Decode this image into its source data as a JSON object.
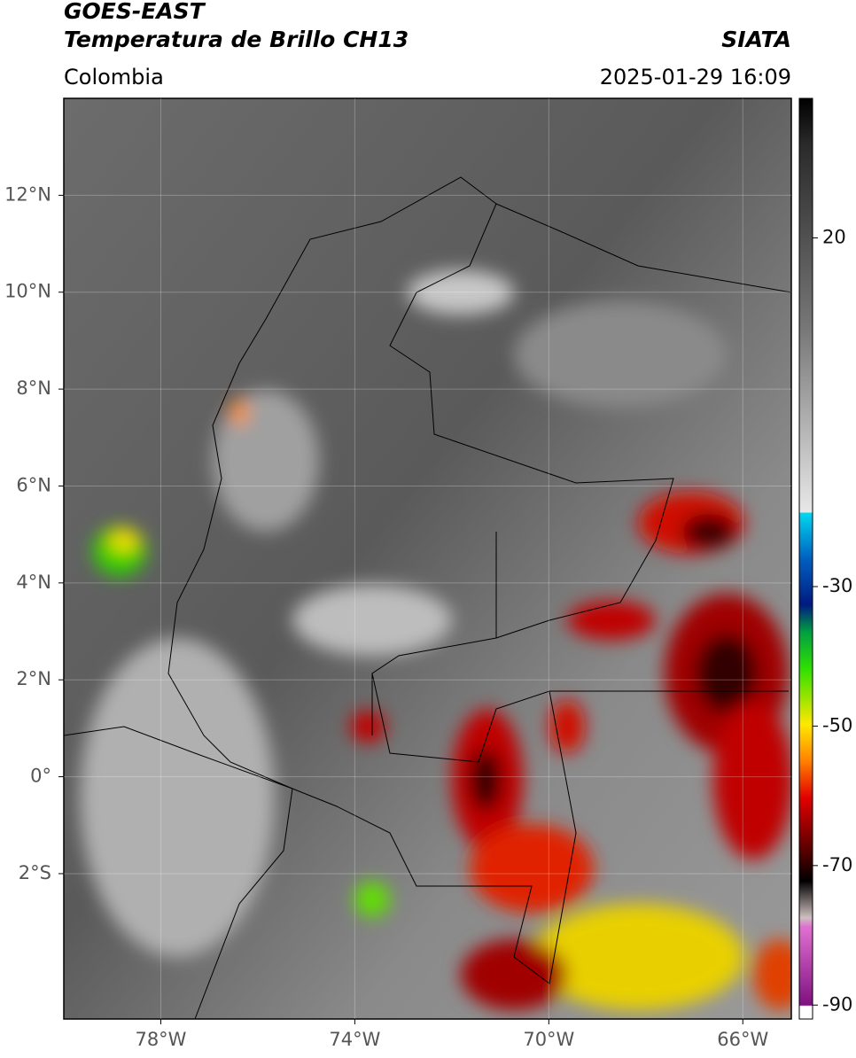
{
  "header": {
    "title": "GOES-EAST",
    "subtitle": "Temperatura de Brillo CH13",
    "region": "Colombia",
    "source": "SIATA",
    "datetime": "2025-01-29 16:09"
  },
  "map": {
    "xlim": [
      -80,
      -65
    ],
    "ylim": [
      -5,
      14
    ],
    "xticks": [
      {
        "value": -78,
        "label": "78°W"
      },
      {
        "value": -74,
        "label": "74°W"
      },
      {
        "value": -70,
        "label": "70°W"
      },
      {
        "value": -66,
        "label": "66°W"
      }
    ],
    "yticks": [
      {
        "value": 12,
        "label": "12°N"
      },
      {
        "value": 10,
        "label": "10°N"
      },
      {
        "value": 8,
        "label": "8°N"
      },
      {
        "value": 6,
        "label": "6°N"
      },
      {
        "value": 4,
        "label": "4°N"
      },
      {
        "value": 2,
        "label": "2°N"
      },
      {
        "value": 0,
        "label": "0°"
      },
      {
        "value": -2,
        "label": "2°S"
      }
    ],
    "grid": true
  },
  "colorbar": {
    "clim": [
      -92,
      40
    ],
    "ticks": [
      20,
      -30,
      -50,
      -70,
      -90
    ]
  }
}
